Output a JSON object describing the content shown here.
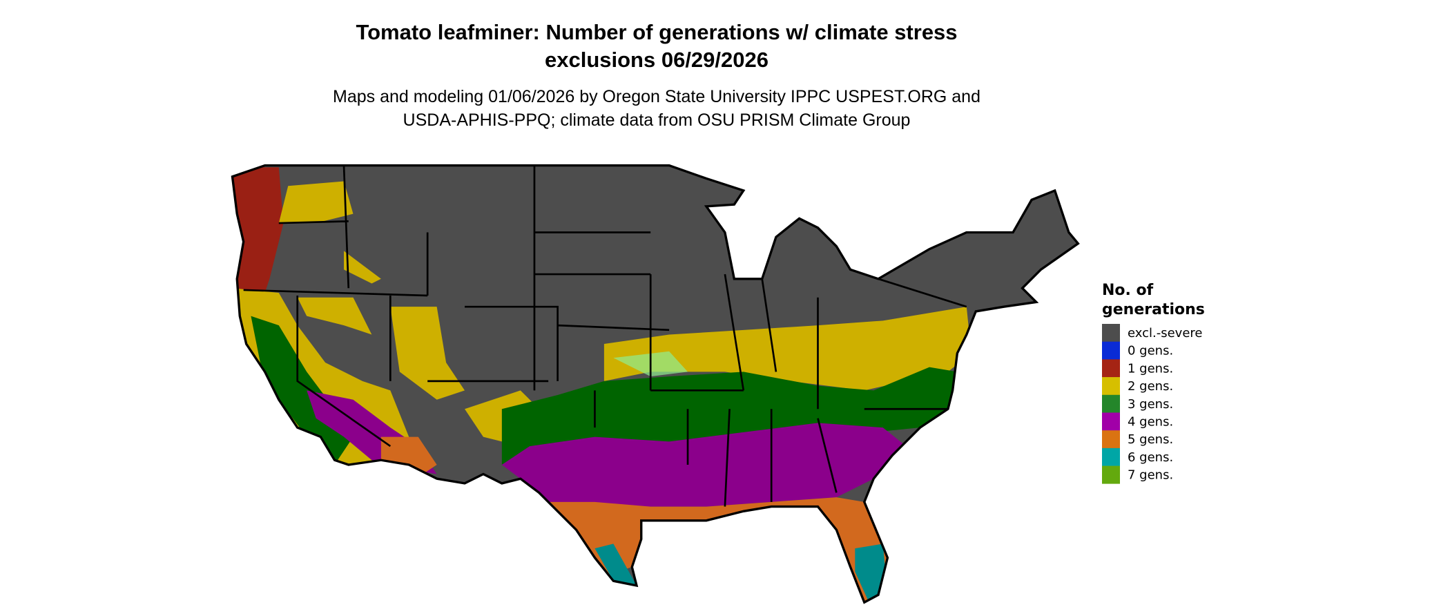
{
  "title": {
    "line1": "Tomato leafminer: Number of generations w/ climate stress",
    "line2": "exclusions 06/29/2026"
  },
  "subtitle": {
    "line1": "Maps and modeling 01/06/2026 by Oregon State University IPPC USPEST.ORG and",
    "line2": "USDA-APHIS-PPQ; climate data from OSU PRISM Climate Group"
  },
  "legend": {
    "title_line1": "No. of",
    "title_line2": "generations",
    "items": [
      {
        "label": "excl.-severe",
        "color": "#4d4d4d"
      },
      {
        "label": "0 gens.",
        "color": "#0a2bd6"
      },
      {
        "label": "1 gens.",
        "color": "#a52414"
      },
      {
        "label": "2 gens.",
        "color": "#d6bf00"
      },
      {
        "label": "3 gens.",
        "color": "#24862a"
      },
      {
        "label": "4 gens.",
        "color": "#a100a8"
      },
      {
        "label": "5 gens.",
        "color": "#da7312"
      },
      {
        "label": "6 gens.",
        "color": "#00a6a6"
      },
      {
        "label": "7 gens.",
        "color": "#63a90e"
      }
    ]
  },
  "map": {
    "region": "Contiguous United States",
    "colors": {
      "excluded": "#4d4d4d",
      "gen1": "#9a2014",
      "gen2": "#ceb000",
      "gen3": "#006400",
      "gen4": "#8b008b",
      "gen5": "#d2691e",
      "gen6": "#008b8b",
      "gen7": "#5aa00e",
      "border": "#000000"
    }
  }
}
